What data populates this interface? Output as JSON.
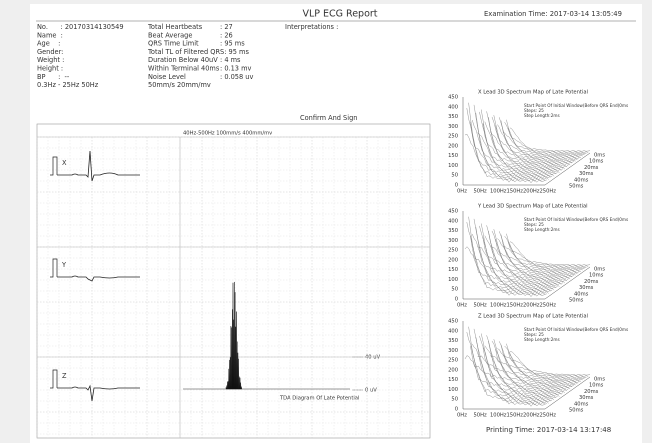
{
  "header": {
    "title": "VLP ECG Report",
    "exam_time": "Examination Time: 2017-03-14 13:05:49"
  },
  "patient": [
    "No.      : 20170314130549",
    "Name  :",
    "Age    :",
    "Gender:",
    "Weight :",
    "Height :",
    "BP      :  --",
    "0.3Hz - 25Hz 50Hz"
  ],
  "measurements": [
    {
      "label": "Total Heartbeats",
      "value": ": 27"
    },
    {
      "label": "Beat Average",
      "value": ": 26"
    },
    {
      "label": "QRS Time Limit",
      "value": ": 95 ms"
    },
    {
      "label": "Total TL of Filtered QRS: 95 ms"
    },
    {
      "label": "Duration Below 40uV",
      "value": ": 4 ms"
    },
    {
      "label": "Within Terminal 40ms",
      "value": ": 0.13 mv"
    },
    {
      "label": "Noise Level",
      "value": ": 0.058 uv"
    },
    {
      "label": "50mm/s 20mm/mv"
    }
  ],
  "interpretations": "Interpretations :",
  "confirm": "Confirm And Sign",
  "ecg": {
    "settings": "40Hz-500Hz 100mm/s 400mm/mv",
    "leads": [
      "X",
      "Y",
      "Z"
    ],
    "tda_title": "TDA Diagram Of Late Potential",
    "level_labels": [
      "40 uV",
      "0 uV"
    ]
  },
  "spectrum_maps": [
    {
      "title": "X Lead 3D Spectrum Map of Late Potential",
      "notes": [
        "Start Point Of Initial Window(Before QRS End)0ms",
        "Steps: 25",
        "Step Length:2ms"
      ],
      "yticks": [
        450,
        400,
        350,
        300,
        250,
        200,
        150,
        100,
        50,
        0
      ],
      "freq_ticks": [
        "0Hz",
        "50Hz",
        "100Hz",
        "150Hz",
        "200Hz",
        "250Hz"
      ],
      "depth_ticks": [
        "0ms",
        "10ms",
        "20ms",
        "30ms",
        "40ms",
        "50ms"
      ]
    },
    {
      "title": "Y Lead 3D Spectrum Map of Late Potential",
      "notes": [
        "Start Point Of Initial Window(Before QRS End)0ms",
        "Steps: 25",
        "Step Length:2ms"
      ],
      "yticks": [
        450,
        400,
        350,
        300,
        250,
        200,
        150,
        100,
        50,
        0
      ],
      "freq_ticks": [
        "0Hz",
        "50Hz",
        "100Hz",
        "150Hz",
        "200Hz",
        "250Hz"
      ],
      "depth_ticks": [
        "0ms",
        "10ms",
        "20ms",
        "30ms",
        "40ms",
        "50ms"
      ]
    },
    {
      "title": "Z Lead 3D Spectrum Map of Late Potential",
      "notes": [
        "Start Point Of Initial Window(Before QRS End)0ms",
        "Steps: 25",
        "Step Length:2ms"
      ],
      "yticks": [
        450,
        400,
        350,
        300,
        250,
        200,
        150,
        100,
        50,
        0
      ],
      "freq_ticks": [
        "0Hz",
        "50Hz",
        "100Hz",
        "150Hz",
        "200Hz",
        "250Hz"
      ],
      "depth_ticks": [
        "0ms",
        "10ms",
        "20ms",
        "30ms",
        "40ms",
        "50ms"
      ]
    }
  ],
  "footer": {
    "print_time": "Printing Time: 2017-03-14 13:17:48"
  }
}
